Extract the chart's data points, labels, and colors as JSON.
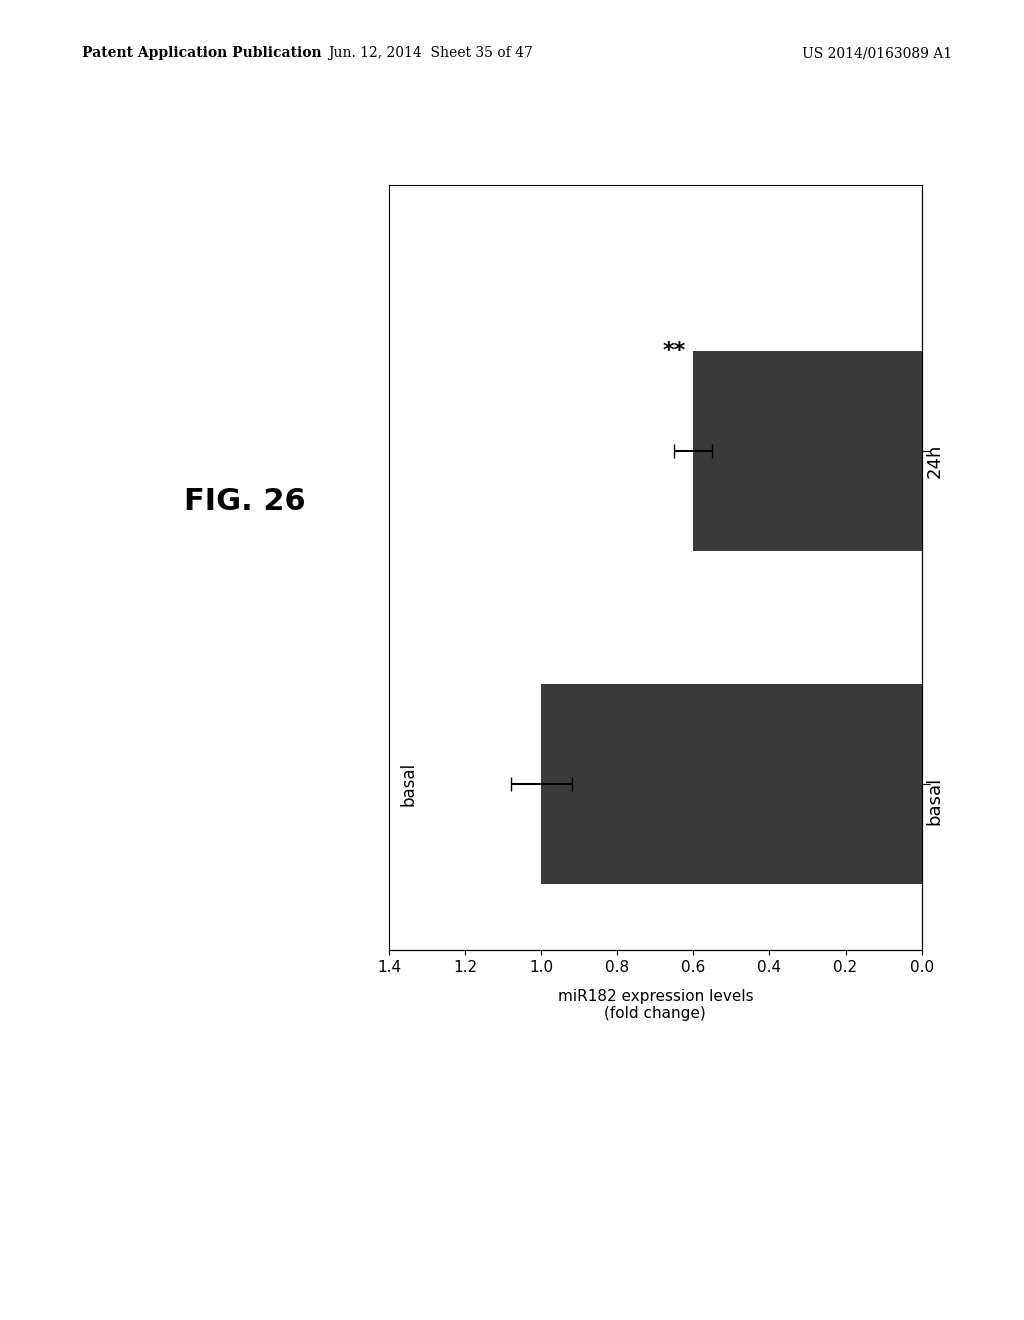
{
  "title": "FIG. 26",
  "ylabel": "miR182 expression levels\n(fold change)",
  "categories": [
    "basal",
    "24h"
  ],
  "values": [
    1.0,
    0.6
  ],
  "errors": [
    0.08,
    0.05
  ],
  "bar_color": "#3a3a3a",
  "xlim": [
    0,
    1.4
  ],
  "xticks": [
    0.0,
    0.2,
    0.4,
    0.6,
    0.8,
    1.0,
    1.2,
    1.4
  ],
  "significance": "**",
  "sig_bar_index": 1,
  "patent_header_left": "Patent Application Publication",
  "patent_header_mid": "Jun. 12, 2014  Sheet 35 of 47",
  "patent_header_right": "US 2014/0163089 A1",
  "fig_label": "FIG. 26",
  "background_color": "#ffffff"
}
